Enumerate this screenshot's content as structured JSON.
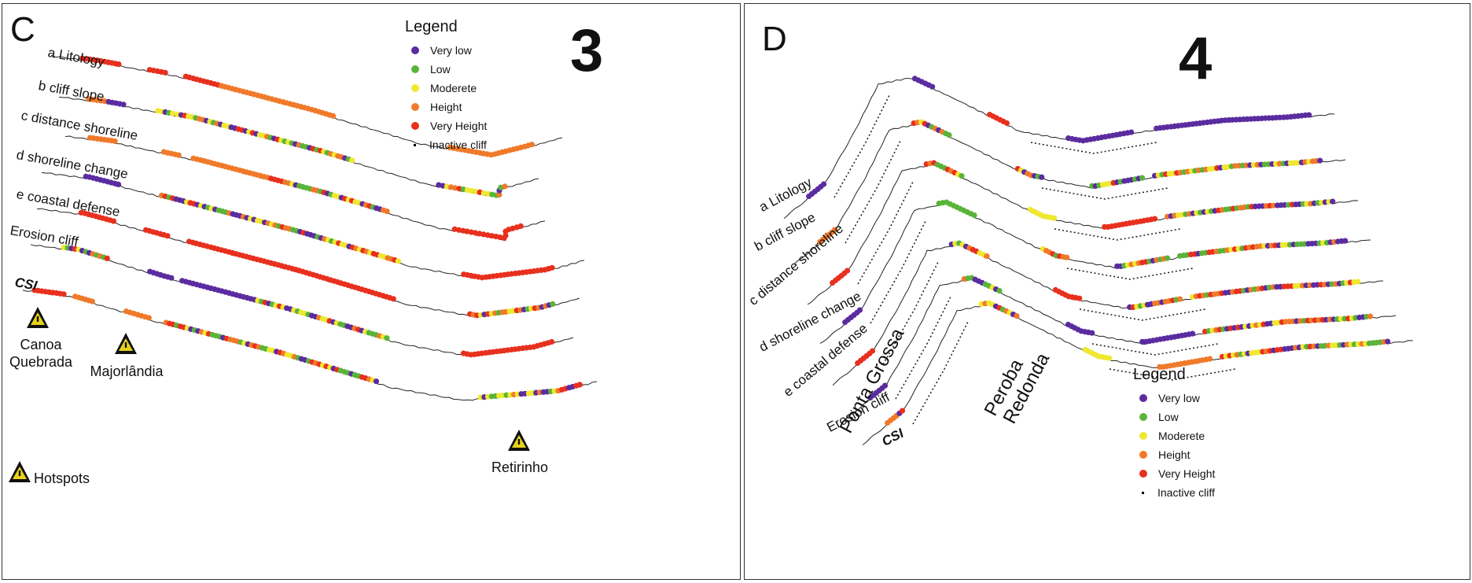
{
  "colors": {
    "very_low": "#5b2ca0",
    "low": "#5ab43a",
    "moderate": "#f0e830",
    "height": "#f07a2a",
    "very_height": "#e8301e",
    "line": "#222222"
  },
  "legend": {
    "title": "Legend",
    "items": [
      {
        "label": "Very low",
        "key": "very_low"
      },
      {
        "label": "Low",
        "key": "low"
      },
      {
        "label": "Moderete",
        "key": "moderate"
      },
      {
        "label": "Height",
        "key": "height"
      },
      {
        "label": "Very Height",
        "key": "very_height"
      },
      {
        "label": "Inactive cliff",
        "key": "inactive"
      }
    ]
  },
  "panel_c": {
    "letter": "C",
    "number": "3",
    "profiles": [
      "a Litology",
      "b cliff slope",
      "c  distance shoreline",
      "d shoreline change",
      "e coastal defense",
      "Erosion cliff",
      "CSI"
    ],
    "hotspots": [
      {
        "name": "Canoa Quebrada",
        "line1": "Canoa",
        "line2": "Quebrada"
      },
      {
        "name": "Majorlândia",
        "line1": "Majorlândia",
        "line2": ""
      },
      {
        "name": "Retirinho",
        "line1": "Retirinho",
        "line2": ""
      }
    ],
    "hotspot_legend": "Hotspots"
  },
  "panel_d": {
    "letter": "D",
    "number": "4",
    "profiles": [
      "a Litology",
      "b cliff slope",
      "c  distance shoreline",
      "d shoreline change",
      "e coastal defense",
      "Erosion cliff",
      "CSI"
    ],
    "places": [
      "Ponta Grossa",
      "Peroba",
      "Redonda"
    ]
  }
}
